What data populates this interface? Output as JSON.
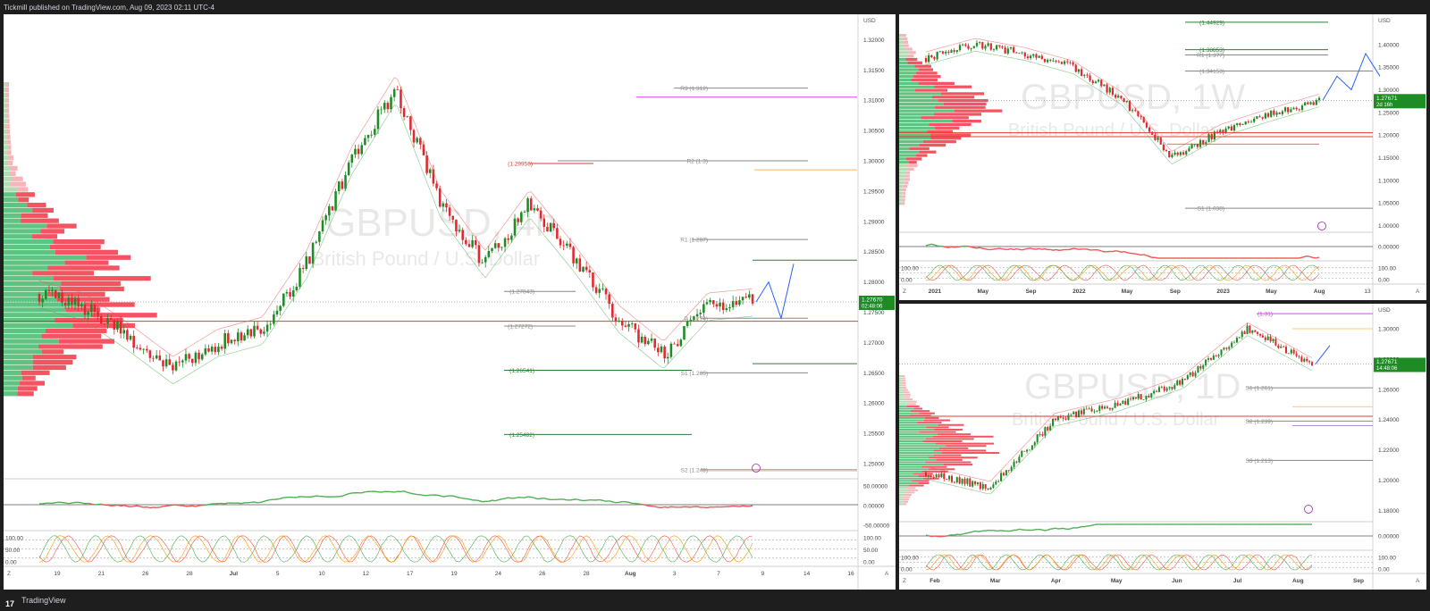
{
  "header": {
    "text": "Tickmill published on TradingView.com, Aug 09, 2023 02:11 UTC-4"
  },
  "footer": {
    "brand": "TradingView",
    "logo_glyph": "17"
  },
  "colors": {
    "up": "#1f8b24",
    "down": "#e0292f",
    "vp_green": "#43b96b",
    "vp_red": "#f23645",
    "vp_green_light": "#a5d6a7",
    "vp_red_light": "#f7a8ad",
    "projection": "#2962ff",
    "rsi_up": "#4caf50",
    "rsi_down": "#ef5350",
    "level_red": "#e53935",
    "level_green": "#2e7d32",
    "magenta": "#e040fb",
    "orange": "#ffb74d"
  },
  "charts": {
    "main": {
      "watermark_symbol": "GBPUSD, 4h",
      "watermark_name": "British Pound / U.S. Dollar",
      "currency": "USD",
      "price_ticks": [
        "1.32000",
        "1.31500",
        "1.31000",
        "1.30500",
        "1.30000",
        "1.29500",
        "1.29000",
        "1.28500",
        "1.28000",
        "1.27500",
        "1.27000",
        "1.26500",
        "1.26000",
        "1.25500",
        "1.25000"
      ],
      "price_current": "1.27670",
      "countdown": "02:48:06",
      "pivot_labels": [
        "R3 (1.312)",
        "R2 (1.3)",
        "R1 (1.287)",
        "P (1.274)",
        "S1 (1.265)",
        "S2 (1.249)"
      ],
      "level_labels": [
        "(1.29956)",
        "(1.27843)",
        "(1.27272)",
        "(1.26541)",
        "(1.25482)"
      ],
      "osc1_ticks": [
        "50.00000",
        "0.00000",
        "-50.00000"
      ],
      "osc2_ticks": [
        "100.00",
        "50.00",
        "0.00"
      ],
      "x_ticks": [
        "19",
        "21",
        "26",
        "28",
        "Jul",
        "5",
        "10",
        "12",
        "17",
        "19",
        "24",
        "26",
        "28",
        "Aug",
        "3",
        "7",
        "9",
        "14",
        "16"
      ],
      "corner_left": "Z",
      "corner_right": "A"
    },
    "weekly": {
      "watermark_symbol": "GBPUSD, 1W",
      "watermark_name": "British Pound / U.S. Dollar",
      "currency": "USD",
      "price_ticks": [
        "1.40000",
        "1.35000",
        "1.30000",
        "1.25000",
        "1.20000",
        "1.15000",
        "1.10000",
        "1.05000",
        "1.00000"
      ],
      "price_current": "1.27671",
      "countdown": "2d 16h",
      "pivot_labels": [
        "(1.44929)",
        "(1.38853)",
        "R1 (1.377)",
        "(1.34153)",
        "S1 (1.038)"
      ],
      "osc1_ticks": [
        "0.00000"
      ],
      "osc2_ticks": [
        "100.00",
        "0.00"
      ],
      "x_ticks": [
        "2021",
        "May",
        "Sep",
        "2022",
        "May",
        "Sep",
        "2023",
        "May",
        "Aug",
        "13"
      ],
      "corner_left": "Z",
      "corner_right": "A"
    },
    "daily": {
      "watermark_symbol": "GBPUSD, 1D",
      "watermark_name": "British Pound / U.S. Dollar",
      "currency": "USD",
      "price_ticks": [
        "1.30000",
        "1.28000",
        "1.26000",
        "1.24000",
        "1.22000",
        "1.20000",
        "1.18000"
      ],
      "price_current": "1.27671",
      "countdown": "14:48:06",
      "pivot_labels": [
        "(1.31)",
        "S1 (1.261)",
        "S2 (1.239)",
        "S3 (1.213)"
      ],
      "osc1_ticks": [
        "0.00000"
      ],
      "osc2_ticks": [
        "100.00",
        "0.00"
      ],
      "x_ticks": [
        "Feb",
        "Mar",
        "Apr",
        "May",
        "Jun",
        "Jul",
        "Aug",
        "Sep"
      ],
      "corner_left": "Z",
      "corner_right": "A"
    }
  },
  "chart_data": [
    {
      "type": "candlestick",
      "symbol": "GBPUSD",
      "timeframe": "4h",
      "currency": "USD",
      "ylim": [
        1.2475,
        1.323
      ],
      "x": [
        "Jun 19",
        "Jun 21",
        "Jun 26",
        "Jun 28",
        "Jul 3",
        "Jul 5",
        "Jul 10",
        "Jul 12",
        "Jul 17",
        "Jul 19",
        "Jul 24",
        "Jul 26",
        "Jul 28",
        "Aug 1",
        "Aug 3",
        "Aug 7",
        "Aug 9"
      ],
      "close": [
        1.278,
        1.276,
        1.271,
        1.2655,
        1.27,
        1.272,
        1.283,
        1.3,
        1.312,
        1.293,
        1.283,
        1.293,
        1.284,
        1.274,
        1.268,
        1.276,
        1.2767
      ],
      "current_price": 1.2767,
      "pivots": {
        "R3": 1.312,
        "R2": 1.3,
        "R1": 1.287,
        "P": 1.274,
        "S1": 1.265,
        "S2": 1.249
      },
      "levels": [
        1.29956,
        1.27843,
        1.27272,
        1.26541,
        1.25482
      ],
      "projection": [
        1.2767,
        1.28,
        1.274,
        1.283
      ]
    },
    {
      "type": "candlestick",
      "symbol": "GBPUSD",
      "timeframe": "1W",
      "currency": "USD",
      "ylim": [
        0.985,
        1.455
      ],
      "x": [
        "2021",
        "May",
        "Sep",
        "2022",
        "May",
        "Sep",
        "2023",
        "May",
        "Aug"
      ],
      "close": [
        1.37,
        1.4,
        1.38,
        1.35,
        1.28,
        1.15,
        1.21,
        1.245,
        1.2767
      ],
      "current_price": 1.27671,
      "pivots": {
        "R1": 1.377,
        "S1": 1.038
      },
      "levels": [
        1.44929,
        1.38853,
        1.34153
      ],
      "projection": [
        1.2767,
        1.33,
        1.3,
        1.38,
        1.33
      ]
    },
    {
      "type": "candlestick",
      "symbol": "GBPUSD",
      "timeframe": "1D",
      "currency": "USD",
      "ylim": [
        1.1725,
        1.313
      ],
      "x": [
        "Feb",
        "Mar",
        "Apr",
        "May",
        "Jun",
        "Jul",
        "Aug"
      ],
      "close": [
        1.205,
        1.195,
        1.24,
        1.25,
        1.265,
        1.3,
        1.2767
      ],
      "current_price": 1.27671,
      "pivots": {
        "P": 1.31,
        "S1": 1.261,
        "S2": 1.239,
        "S3": 1.213
      },
      "projection": [
        1.2767,
        1.289
      ]
    }
  ]
}
